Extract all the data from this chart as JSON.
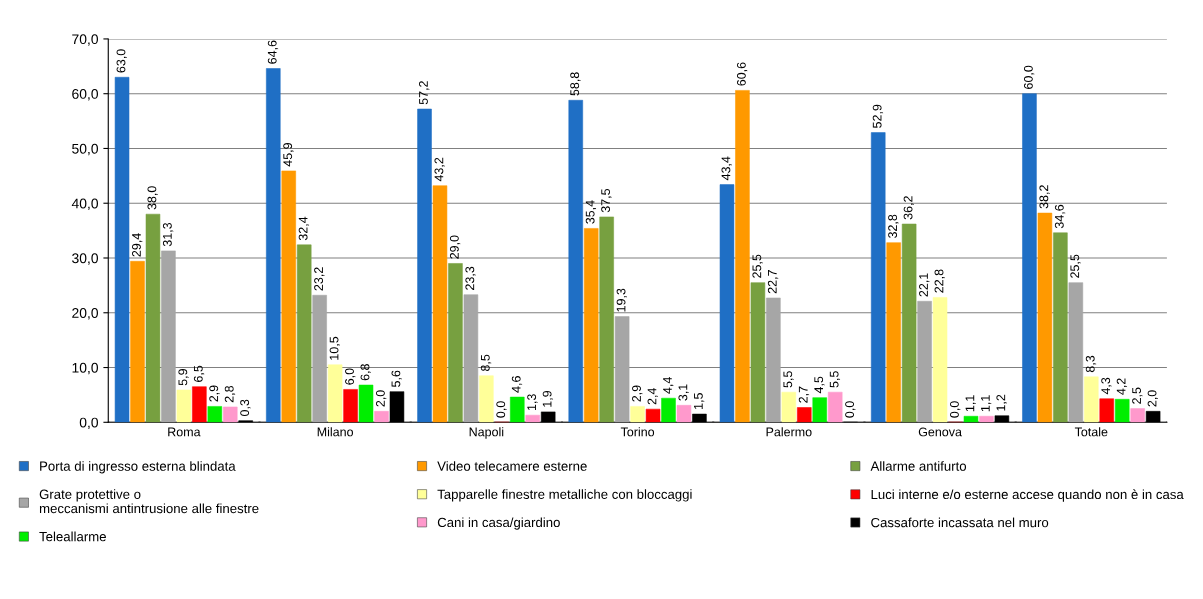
{
  "chart_data": {
    "type": "bar",
    "categories": [
      "Roma",
      "Milano",
      "Napoli",
      "Torino",
      "Palermo",
      "Genova",
      "Totale"
    ],
    "series": [
      {
        "name": "Porta di ingresso esterna blindata",
        "color": "#1f6fc5",
        "values": [
          63.0,
          64.6,
          57.2,
          58.8,
          43.4,
          52.9,
          60.0
        ],
        "value_labels": [
          "63,0",
          "64,6",
          "57,2",
          "58,8",
          "43,4",
          "52,9",
          "60,0"
        ]
      },
      {
        "name": "Video telecamere esterne",
        "color": "#ff9900",
        "values": [
          29.4,
          45.9,
          43.2,
          35.4,
          60.6,
          32.8,
          38.2
        ],
        "value_labels": [
          "29,4",
          "45,9",
          "43,2",
          "35,4",
          "60,6",
          "32,8",
          "38,2"
        ]
      },
      {
        "name": "Allarme antifurto",
        "color": "#77a040",
        "values": [
          38.0,
          32.4,
          29.0,
          37.5,
          25.5,
          36.2,
          34.6
        ],
        "value_labels": [
          "38,0",
          "32,4",
          "29,0",
          "37,5",
          "25,5",
          "36,2",
          "34,6"
        ]
      },
      {
        "name": "Grate protettive o\nmeccanismi antintrusione alle finestre",
        "color": "#a6a6a6",
        "values": [
          31.3,
          23.2,
          23.3,
          19.3,
          22.7,
          22.1,
          25.5
        ],
        "value_labels": [
          "31,3",
          "23,2",
          "23,3",
          "19,3",
          "22,7",
          "22,1",
          "25,5"
        ]
      },
      {
        "name": "Tapparelle finestre metalliche con bloccaggi",
        "color": "#ffff99",
        "values": [
          5.9,
          10.5,
          8.5,
          2.9,
          5.5,
          22.8,
          8.3
        ],
        "value_labels": [
          "5,9",
          "10,5",
          "8,5",
          "2,9",
          "5,5",
          "22,8",
          "8,3"
        ]
      },
      {
        "name": "Luci interne e/o esterne accese quando non è in casa",
        "color": "#ff0000",
        "values": [
          6.5,
          6.0,
          0.0,
          2.4,
          2.7,
          0.0,
          4.3
        ],
        "value_labels": [
          "6,5",
          "6,0",
          "0,0",
          "2,4",
          "2,7",
          "0,0",
          "4,3"
        ]
      },
      {
        "name": "Teleallarme",
        "color": "#00ee00",
        "values": [
          2.9,
          6.8,
          4.6,
          4.4,
          4.5,
          1.1,
          4.2
        ],
        "value_labels": [
          "2,9",
          "6,8",
          "4,6",
          "4,4",
          "4,5",
          "1,1",
          "4,2"
        ]
      },
      {
        "name": "Cani in casa/giardino",
        "color": "#ff99cc",
        "values": [
          2.8,
          2.0,
          1.3,
          3.1,
          5.5,
          1.1,
          2.5
        ],
        "value_labels": [
          "2,8",
          "2,0",
          "1,3",
          "3,1",
          "5,5",
          "1,1",
          "2,5"
        ]
      },
      {
        "name": "Cassaforte incassata nel muro",
        "color": "#000000",
        "values": [
          0.3,
          5.6,
          1.9,
          1.5,
          0.0,
          1.2,
          2.0
        ],
        "value_labels": [
          "0,3",
          "5,6",
          "1,9",
          "1,5",
          "0,0",
          "1,2",
          "2,0"
        ]
      }
    ],
    "ylim": [
      0,
      70
    ],
    "yticks": [
      {
        "value": 0,
        "label": "0,0"
      },
      {
        "value": 10,
        "label": "10,0"
      },
      {
        "value": 20,
        "label": "20,0"
      },
      {
        "value": 30,
        "label": "30,0"
      },
      {
        "value": 40,
        "label": "40,0"
      },
      {
        "value": 50,
        "label": "50,0"
      },
      {
        "value": 60,
        "label": "60,0"
      },
      {
        "value": 70,
        "label": "70,0"
      }
    ],
    "grid": "y",
    "legend": "bottom"
  }
}
